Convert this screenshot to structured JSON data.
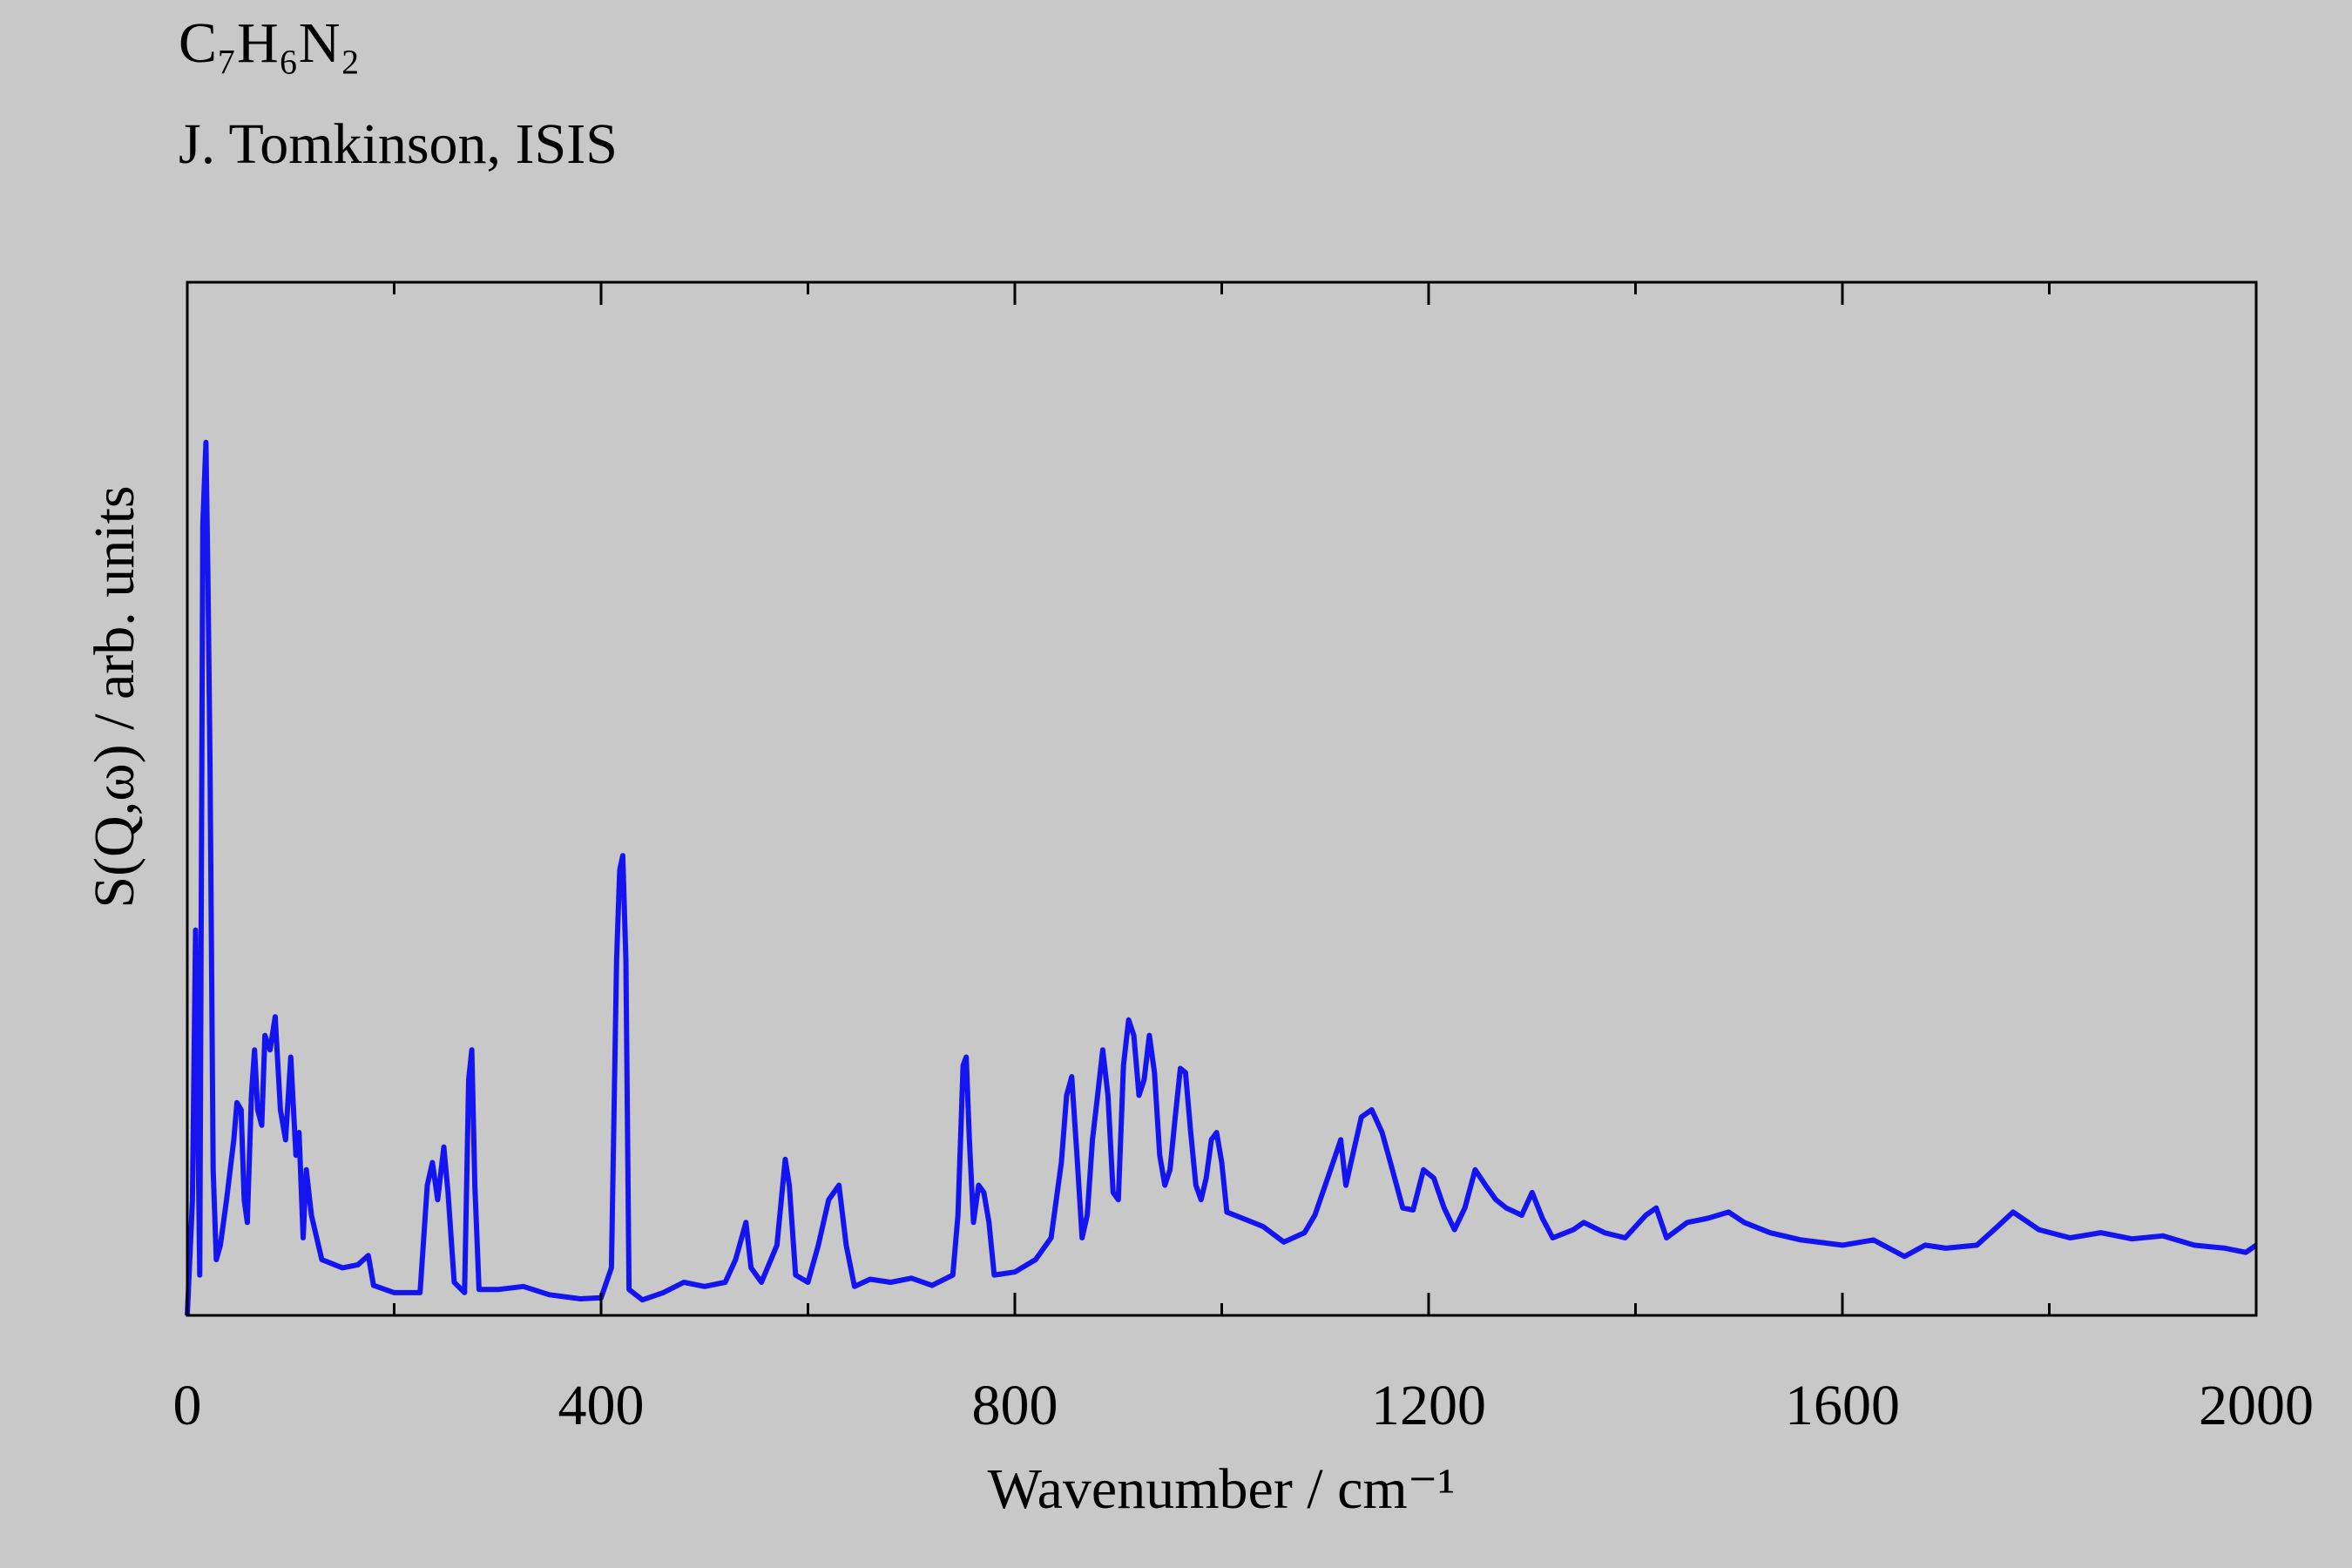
{
  "chart_data": {
    "type": "line",
    "title": "C₇H₆N₂",
    "subtitle": "J. Tomkinson, ISIS",
    "x_label": "Wavenumber / cm⁻¹",
    "y_label": "S(Q,ω) / arb. units",
    "color": "#1414f0",
    "xlim": [
      0,
      2000
    ],
    "xticks": [
      0,
      400,
      800,
      1200,
      1600,
      2000
    ],
    "xminor_ticks": [
      200,
      600,
      1000,
      1400,
      1800
    ],
    "ylim": [
      0,
      100
    ],
    "x": [
      0,
      5,
      8,
      12,
      15,
      18,
      20,
      22,
      25,
      28,
      32,
      38,
      45,
      48,
      52,
      55,
      58,
      62,
      65,
      68,
      72,
      75,
      80,
      85,
      90,
      95,
      100,
      105,
      108,
      112,
      115,
      120,
      130,
      150,
      165,
      175,
      180,
      200,
      225,
      232,
      237,
      242,
      248,
      252,
      258,
      268,
      272,
      275,
      278,
      282,
      300,
      325,
      350,
      380,
      400,
      410,
      415,
      418,
      421,
      424,
      427,
      440,
      460,
      480,
      500,
      520,
      530,
      540,
      545,
      555,
      570,
      578,
      582,
      588,
      600,
      610,
      620,
      630,
      637,
      645,
      660,
      680,
      700,
      720,
      740,
      745,
      750,
      753,
      756,
      760,
      765,
      770,
      775,
      780,
      800,
      820,
      835,
      845,
      850,
      855,
      860,
      865,
      870,
      875,
      880,
      885,
      890,
      895,
      900,
      905,
      910,
      915,
      920,
      925,
      930,
      935,
      940,
      945,
      950,
      955,
      960,
      965,
      970,
      975,
      980,
      985,
      990,
      995,
      1000,
      1005,
      1020,
      1040,
      1060,
      1080,
      1090,
      1100,
      1110,
      1115,
      1120,
      1125,
      1135,
      1145,
      1155,
      1165,
      1175,
      1185,
      1195,
      1205,
      1215,
      1225,
      1235,
      1245,
      1255,
      1265,
      1275,
      1290,
      1300,
      1310,
      1320,
      1340,
      1350,
      1370,
      1390,
      1410,
      1420,
      1430,
      1450,
      1470,
      1490,
      1505,
      1530,
      1560,
      1600,
      1630,
      1660,
      1680,
      1700,
      1730,
      1750,
      1765,
      1790,
      1820,
      1850,
      1880,
      1910,
      1940,
      1970,
      1990,
      2000
    ],
    "values": [
      0,
      11.2,
      37.3,
      3.9,
      76.5,
      84.5,
      70.7,
      53.3,
      14.1,
      5.4,
      6.8,
      11.2,
      17.0,
      20.6,
      19.9,
      11.2,
      9.0,
      21.3,
      25.7,
      19.9,
      18.4,
      27.1,
      25.7,
      28.9,
      19.9,
      17.0,
      25.0,
      15.5,
      17.7,
      7.5,
      14.1,
      9.7,
      5.4,
      4.6,
      4.9,
      5.8,
      2.9,
      2.2,
      2.2,
      12.6,
      14.8,
      11.2,
      16.3,
      11.9,
      3.2,
      2.2,
      22.8,
      25.7,
      12.6,
      2.5,
      2.5,
      2.8,
      2.0,
      1.6,
      1.7,
      4.6,
      34.4,
      43.1,
      44.5,
      34.4,
      2.5,
      1.5,
      2.2,
      3.2,
      2.8,
      3.2,
      5.4,
      9.0,
      4.6,
      3.2,
      6.8,
      15.1,
      12.6,
      3.9,
      3.2,
      6.8,
      11.2,
      12.6,
      6.8,
      2.8,
      3.5,
      3.2,
      3.6,
      2.9,
      3.9,
      9.7,
      24.2,
      25.0,
      17.0,
      9.0,
      12.6,
      11.9,
      9.0,
      3.9,
      4.2,
      5.4,
      7.5,
      14.8,
      21.3,
      23.1,
      15.5,
      7.5,
      9.7,
      17.0,
      21.3,
      25.7,
      21.3,
      11.9,
      11.2,
      24.2,
      28.6,
      27.1,
      21.3,
      22.8,
      27.1,
      23.5,
      15.5,
      12.6,
      14.1,
      19.2,
      23.9,
      23.5,
      17.7,
      12.6,
      11.2,
      13.3,
      17.0,
      17.7,
      14.8,
      10.0,
      9.4,
      8.6,
      7.1,
      8.0,
      9.7,
      12.6,
      15.5,
      17.0,
      12.6,
      14.8,
      19.2,
      19.9,
      17.7,
      14.1,
      10.4,
      10.2,
      14.1,
      13.3,
      10.4,
      8.3,
      10.4,
      14.1,
      12.6,
      11.2,
      10.4,
      9.7,
      11.9,
      9.4,
      7.5,
      8.3,
      9.0,
      8.0,
      7.5,
      9.7,
      10.4,
      7.5,
      9.0,
      9.4,
      10.0,
      9.0,
      8.0,
      7.3,
      6.8,
      7.3,
      5.7,
      6.8,
      6.5,
      6.8,
      8.6,
      10.0,
      8.3,
      7.5,
      8.0,
      7.4,
      7.7,
      6.8,
      6.5,
      6.1,
      6.8
    ]
  }
}
